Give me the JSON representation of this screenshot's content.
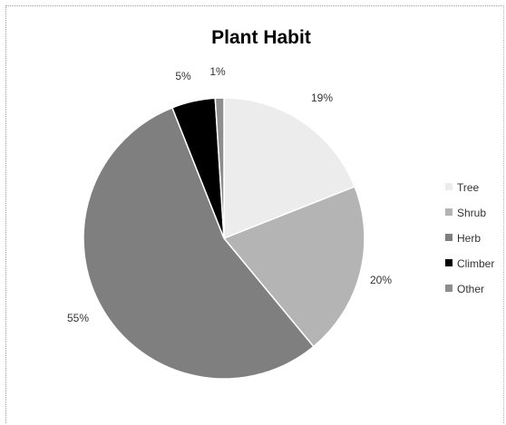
{
  "chart_data": {
    "type": "pie",
    "title": "Plant Habit",
    "categories": [
      "Tree",
      "Shrub",
      "Herb",
      "Climber",
      "Other"
    ],
    "values": [
      19,
      20,
      55,
      5,
      1
    ],
    "value_labels": [
      "19%",
      "20%",
      "55%",
      "5%",
      "1%"
    ],
    "colors": [
      "#ececec",
      "#b4b4b4",
      "#7f7f7f",
      "#000000",
      "#8e8e8e"
    ],
    "legend_position": "right",
    "start_angle": "top (12 o'clock), clockwise"
  }
}
